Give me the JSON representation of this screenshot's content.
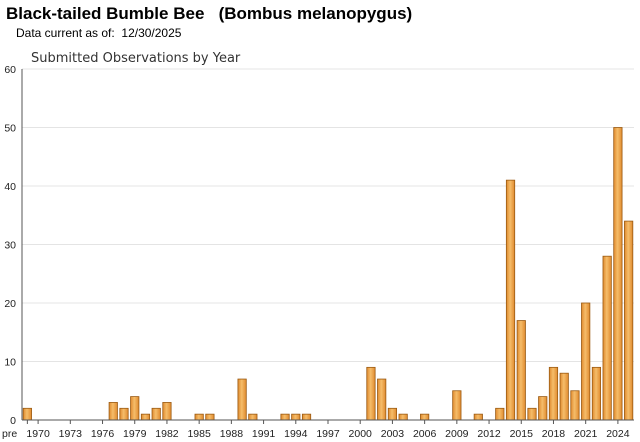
{
  "header": {
    "species_title": "Black-tailed Bumble Bee   (Bombus melanopygus)",
    "data_current_label": "Data current as of:",
    "data_current_date": "12/30/2025"
  },
  "colors": {
    "bar_fill_light": "#f5bd6a",
    "bar_fill_dark": "#e08a2e",
    "bar_stroke": "#9a5a12",
    "gridline": "#e4e4e4",
    "axis": "#555555"
  },
  "chart_data": {
    "type": "bar",
    "title": "Submitted Observations by Year",
    "xlabel": "",
    "ylabel": "",
    "ylim": [
      0,
      60
    ],
    "yticks": [
      0,
      10,
      20,
      30,
      40,
      50,
      60
    ],
    "grid": true,
    "categories": [
      "pre 1970",
      "1970",
      "1971",
      "1972",
      "1973",
      "1974",
      "1975",
      "1976",
      "1977",
      "1978",
      "1979",
      "1980",
      "1981",
      "1982",
      "1983",
      "1984",
      "1985",
      "1986",
      "1987",
      "1988",
      "1989",
      "1990",
      "1991",
      "1992",
      "1993",
      "1994",
      "1995",
      "1996",
      "1997",
      "1998",
      "1999",
      "2000",
      "2001",
      "2002",
      "2003",
      "2004",
      "2005",
      "2006",
      "2007",
      "2008",
      "2009",
      "2010",
      "2011",
      "2012",
      "2013",
      "2014",
      "2015",
      "2016",
      "2017",
      "2018",
      "2019",
      "2020",
      "2021",
      "2022",
      "2023",
      "2024",
      "2025"
    ],
    "values": [
      2,
      0,
      0,
      0,
      0,
      0,
      0,
      0,
      3,
      2,
      4,
      1,
      2,
      3,
      0,
      0,
      1,
      1,
      0,
      0,
      7,
      1,
      0,
      0,
      1,
      1,
      1,
      0,
      0,
      0,
      0,
      0,
      9,
      7,
      2,
      1,
      0,
      1,
      0,
      0,
      5,
      0,
      1,
      0,
      2,
      41,
      17,
      2,
      4,
      9,
      8,
      5,
      20,
      9,
      28,
      50,
      34
    ],
    "xtick_labels": [
      "pre",
      "1970",
      "1973",
      "1976",
      "1979",
      "1982",
      "1985",
      "1988",
      "1991",
      "1994",
      "1997",
      "2000",
      "2003",
      "2006",
      "2009",
      "2012",
      "2015",
      "2018",
      "2021",
      "2024"
    ],
    "xtick_indices": [
      0,
      1,
      4,
      7,
      10,
      13,
      16,
      19,
      22,
      25,
      28,
      31,
      34,
      37,
      40,
      43,
      46,
      49,
      52,
      55
    ]
  }
}
